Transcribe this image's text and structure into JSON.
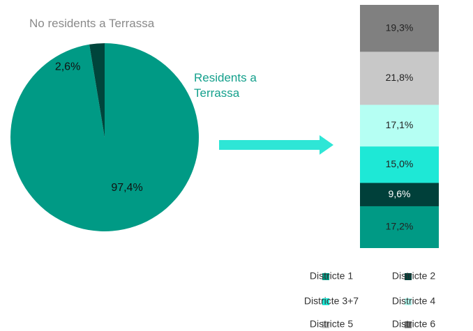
{
  "chart_data": [
    {
      "type": "pie",
      "categories": [
        "Residents a Terrassa",
        "No residents a Terrassa"
      ],
      "values": [
        97.4,
        2.6
      ],
      "value_labels": [
        "97,4%",
        "2,6%"
      ],
      "colors": [
        "#009a85",
        "#00453c"
      ]
    },
    {
      "type": "stacked_bar",
      "ylim": [
        0,
        100
      ],
      "series": [
        {
          "name": "Districte 1",
          "color": "#009a85",
          "values": [
            17.2
          ],
          "value_labels": [
            "17,2%"
          ]
        },
        {
          "name": "Districte 2",
          "color": "#00403a",
          "values": [
            9.6
          ],
          "value_labels": [
            "9,6%"
          ]
        },
        {
          "name": "Districte 3+7",
          "color": "#1ee8d6",
          "values": [
            15.0
          ],
          "value_labels": [
            "15,0%"
          ]
        },
        {
          "name": "Districte 4",
          "color": "#b5fff3",
          "values": [
            17.1
          ],
          "value_labels": [
            "17,1%"
          ]
        },
        {
          "name": "Districte 5",
          "color": "#c8c8c8",
          "values": [
            21.8
          ],
          "value_labels": [
            "21,8%"
          ]
        },
        {
          "name": "Districte 6",
          "color": "#808080",
          "values": [
            19.3
          ],
          "value_labels": [
            "19,3%"
          ]
        }
      ]
    }
  ]
}
